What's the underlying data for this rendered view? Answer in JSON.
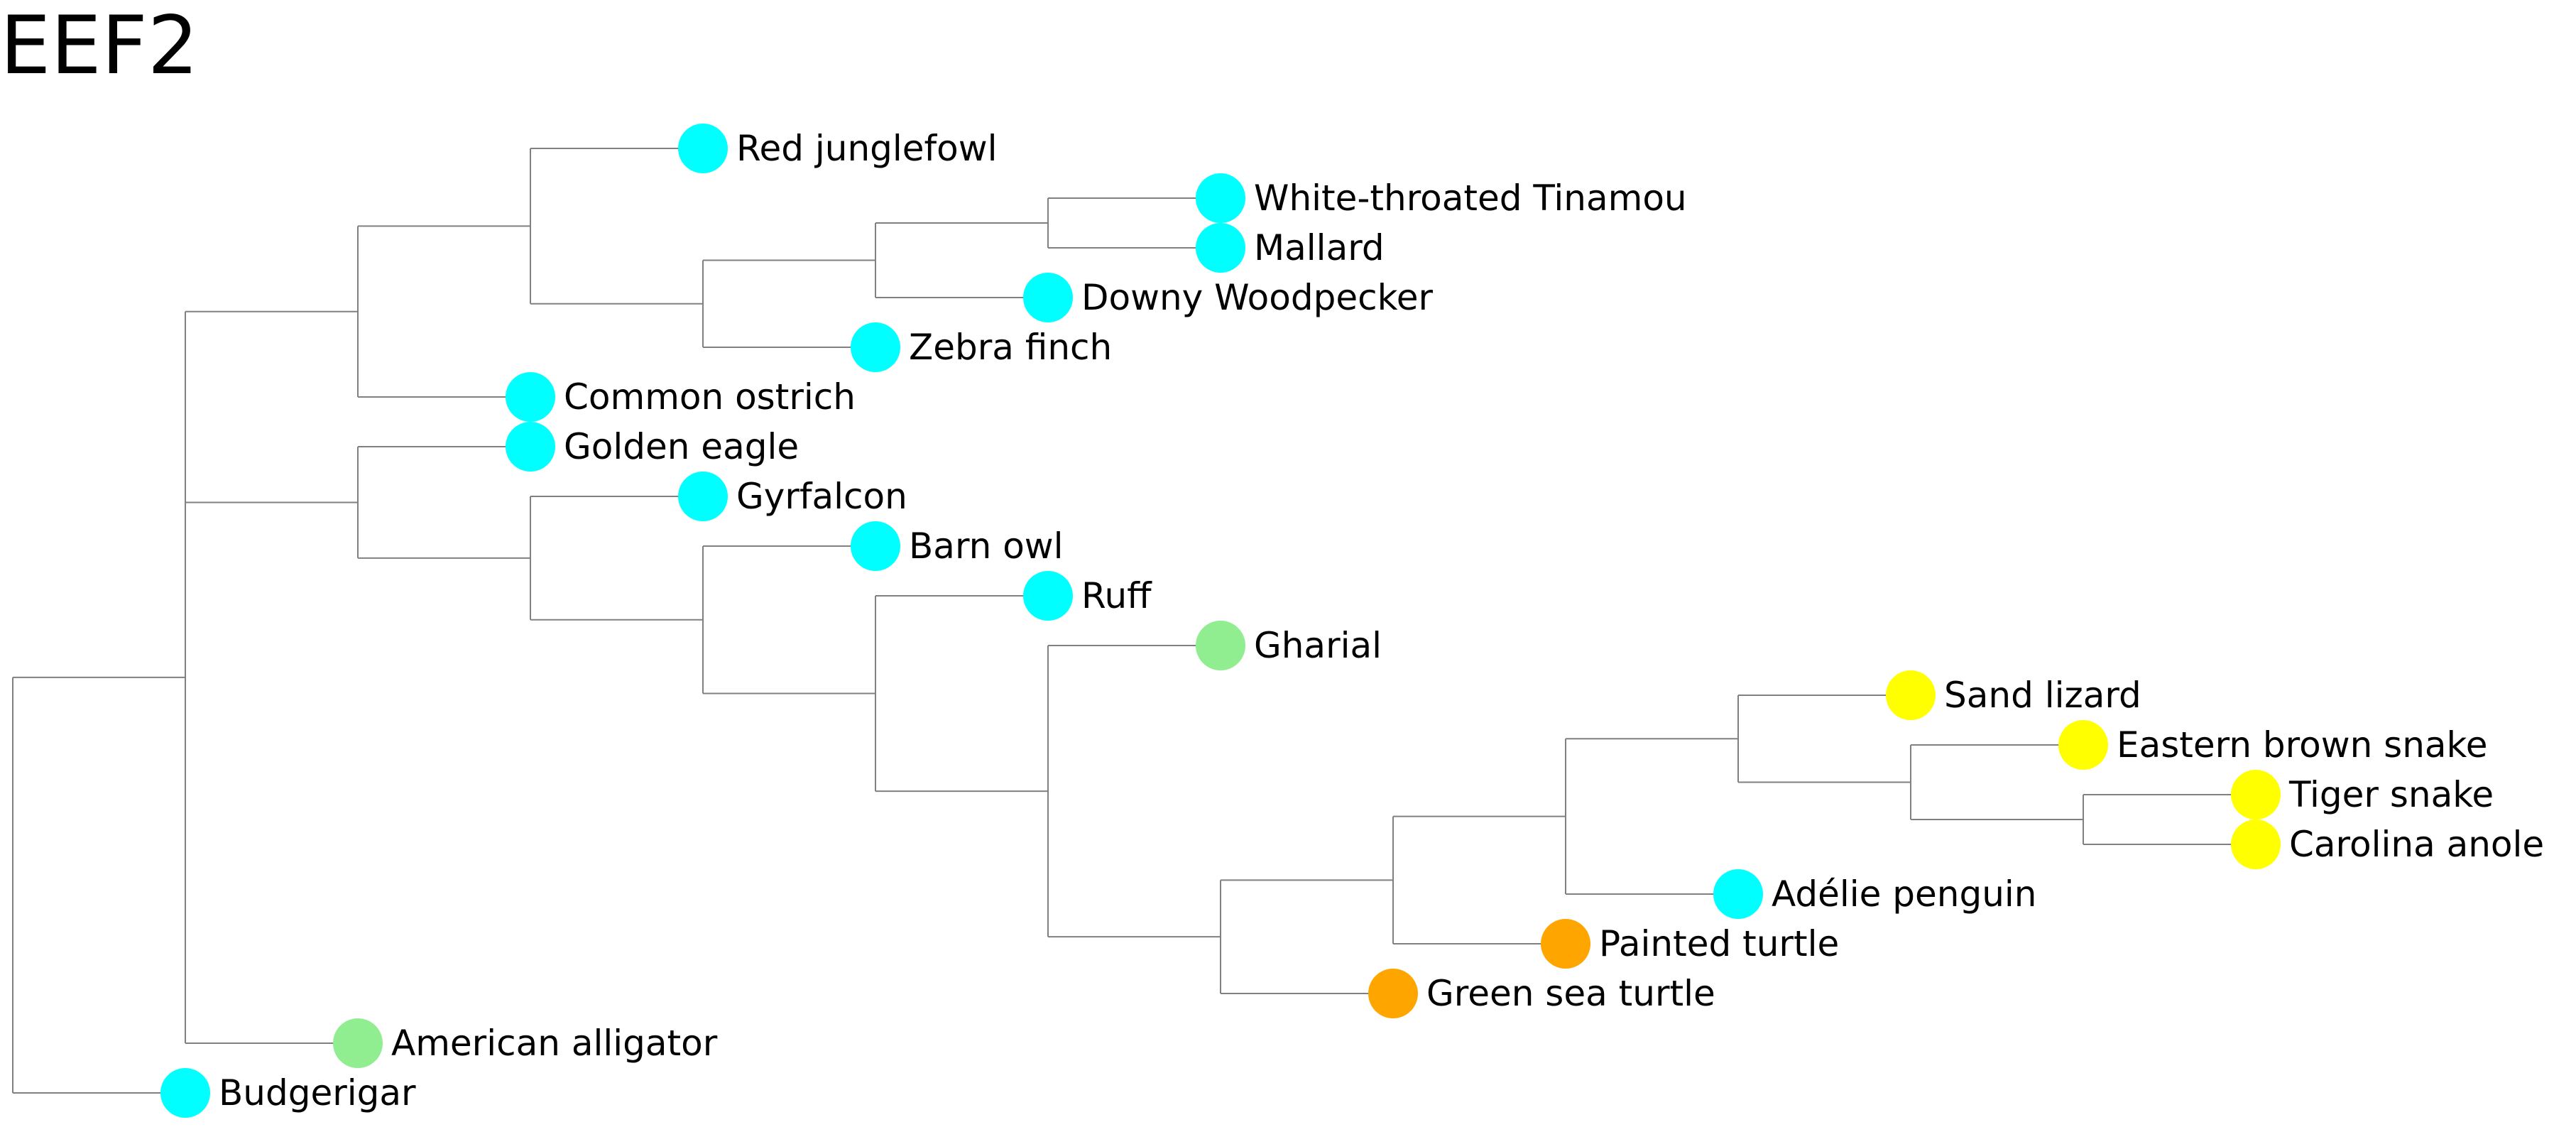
{
  "title": "EEF2",
  "colors": {
    "branch": "#808080",
    "bird": "#00FFFF",
    "crocodilian": "#90EE90",
    "turtle": "#FFA500",
    "squamate": "#FFFF00"
  },
  "tree": {
    "children": [
      {
        "children": [
          {
            "children": [
              {
                "children": [
                  {
                    "name": "Red junglefowl",
                    "group": "bird"
                  },
                  {
                    "children": [
                      {
                        "children": [
                          {
                            "children": [
                              {
                                "name": "White-throated Tinamou",
                                "group": "bird"
                              },
                              {
                                "name": "Mallard",
                                "group": "bird"
                              }
                            ]
                          },
                          {
                            "name": "Downy Woodpecker",
                            "group": "bird"
                          }
                        ]
                      },
                      {
                        "name": "Zebra finch",
                        "group": "bird"
                      }
                    ]
                  }
                ]
              },
              {
                "name": "Common ostrich",
                "group": "bird"
              }
            ]
          },
          {
            "children": [
              {
                "name": "Golden eagle",
                "group": "bird"
              },
              {
                "children": [
                  {
                    "name": "Gyrfalcon",
                    "group": "bird"
                  },
                  {
                    "children": [
                      {
                        "name": "Barn owl",
                        "group": "bird"
                      },
                      {
                        "children": [
                          {
                            "name": "Ruff",
                            "group": "bird"
                          },
                          {
                            "children": [
                              {
                                "name": "Gharial",
                                "group": "crocodilian"
                              },
                              {
                                "children": [
                                  {
                                    "children": [
                                      {
                                        "children": [
                                          {
                                            "children": [
                                              {
                                                "name": "Sand lizard",
                                                "group": "squamate"
                                              },
                                              {
                                                "children": [
                                                  {
                                                    "name": "Eastern brown snake",
                                                    "group": "squamate"
                                                  },
                                                  {
                                                    "children": [
                                                      {
                                                        "name": "Tiger snake",
                                                        "group": "squamate"
                                                      },
                                                      {
                                                        "name": "Carolina anole",
                                                        "group": "squamate"
                                                      }
                                                    ]
                                                  }
                                                ]
                                              }
                                            ]
                                          },
                                          {
                                            "name": "Adélie penguin",
                                            "group": "bird"
                                          }
                                        ]
                                      },
                                      {
                                        "name": "Painted turtle",
                                        "group": "turtle"
                                      }
                                    ]
                                  },
                                  {
                                    "name": "Green sea turtle",
                                    "group": "turtle"
                                  }
                                ]
                              }
                            ]
                          }
                        ]
                      }
                    ]
                  }
                ]
              }
            ]
          },
          {
            "name": "American alligator",
            "group": "crocodilian"
          }
        ]
      },
      {
        "name": "Budgerigar",
        "group": "bird"
      }
    ]
  }
}
